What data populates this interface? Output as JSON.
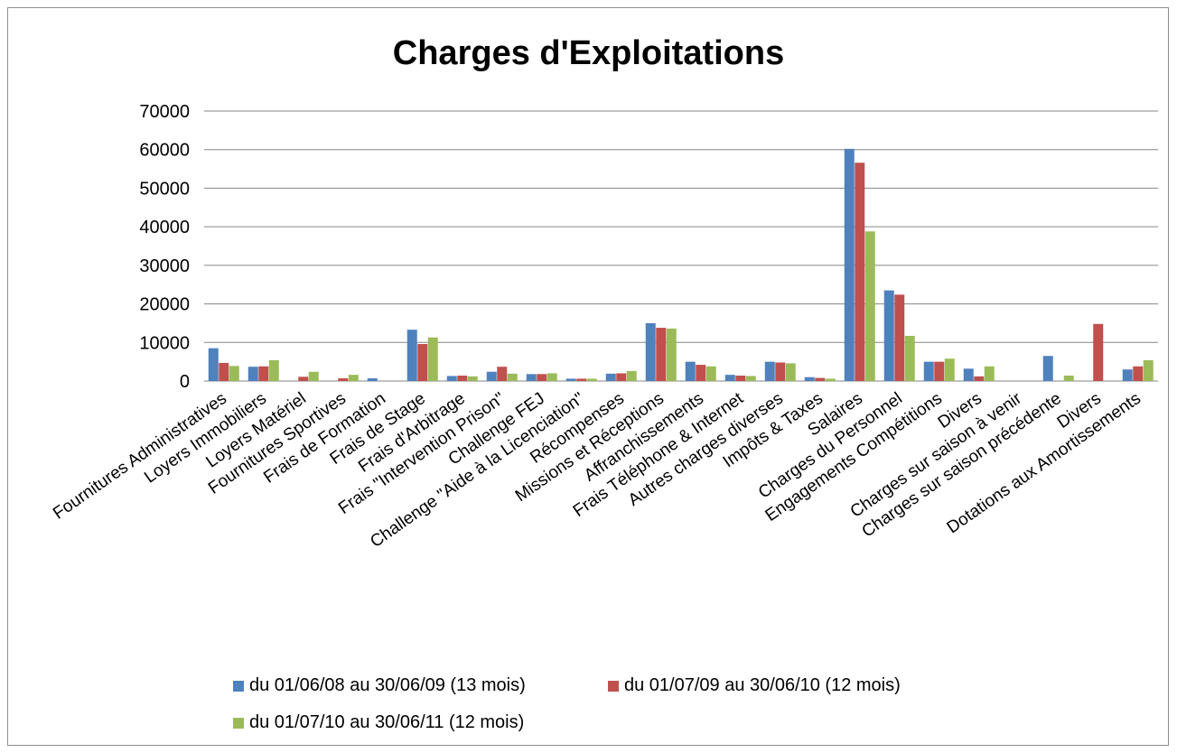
{
  "chart_data": {
    "type": "bar",
    "title": "Charges d'Exploitations",
    "xlabel": "",
    "ylabel": "",
    "ylim": [
      0,
      70000
    ],
    "yticks": [
      0,
      10000,
      20000,
      30000,
      40000,
      50000,
      60000,
      70000
    ],
    "grid": true,
    "legend_position": "bottom",
    "categories": [
      "Fournitures Administratives",
      "Loyers Immobiliers",
      "Loyers Matériel",
      "Fournitures  Sportives",
      "Frais de Formation",
      "Frais de Stage",
      "Frais d'Arbitrage",
      "Frais \"Intervention Prison\"",
      "Challenge FEJ",
      "Challenge \"Aide à la Licenciation\"",
      "Récompenses",
      "Missions et Réceptions",
      "Affranchissements",
      "Frais Téléphone & Internet",
      "Autres charges diverses",
      "Impôts & Taxes",
      "Salaires",
      "Charges du Personnel",
      "Engagements Compétitions",
      "Divers",
      "Charges sur saison à venir",
      "Charges sur saison précédente",
      "Divers",
      "Dotations aux Amortissements"
    ],
    "series": [
      {
        "name": "du 01/06/08 au 30/06/09 (13 mois)",
        "color": "#4F81BD",
        "values": [
          8500,
          3700,
          0,
          0,
          700,
          13300,
          1300,
          2400,
          1800,
          600,
          1900,
          15000,
          5000,
          1600,
          5000,
          1000,
          60200,
          23500,
          5000,
          3200,
          0,
          6500,
          0,
          3000
        ]
      },
      {
        "name": "du 01/07/09 au 30/06/10 (12 mois)",
        "color": "#C0504D",
        "values": [
          4700,
          3800,
          1100,
          700,
          0,
          9600,
          1400,
          3700,
          1800,
          600,
          2000,
          13800,
          4200,
          1400,
          4800,
          800,
          56600,
          22400,
          5000,
          1200,
          0,
          0,
          14800,
          3800
        ]
      },
      {
        "name": "du 01/07/10 au 30/06/11 (12 mois)",
        "color": "#9BBB59",
        "values": [
          3900,
          5400,
          2400,
          1600,
          0,
          11300,
          1200,
          1900,
          2000,
          600,
          2600,
          13600,
          3800,
          1300,
          4600,
          600,
          38800,
          11700,
          5800,
          3800,
          0,
          1400,
          0,
          5400
        ]
      }
    ]
  }
}
